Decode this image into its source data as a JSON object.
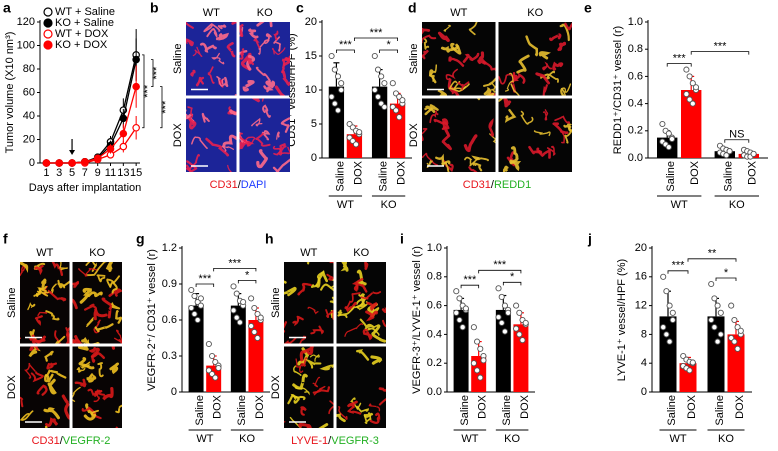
{
  "chart_data": [
    {
      "panel": "a",
      "type": "line",
      "ylabel": "Tumor volume (X10 nm³)",
      "xlabel": "Days after implantation",
      "x": [
        1,
        3,
        5,
        7,
        9,
        11,
        13,
        15
      ],
      "xlim": [
        0,
        15.6
      ],
      "xticks": [
        1,
        3,
        5,
        7,
        9,
        11,
        13,
        15
      ],
      "ylim": [
        0,
        120
      ],
      "yticks": [
        0,
        20,
        40,
        60,
        80,
        100,
        120
      ],
      "arrow": 5,
      "series": [
        {
          "name": "WT + Saline",
          "color": "#000000",
          "marker": "open",
          "values": [
            0,
            0,
            0,
            1,
            5,
            18,
            45,
            92
          ],
          "errors": [
            0,
            0,
            0,
            1,
            2,
            5,
            10,
            22
          ]
        },
        {
          "name": "KO + Saline",
          "color": "#000000",
          "marker": "filled",
          "values": [
            0,
            0,
            0,
            1,
            4,
            15,
            38,
            88
          ],
          "errors": [
            0,
            0,
            0,
            1,
            2,
            4,
            8,
            18
          ]
        },
        {
          "name": "WT + DOX",
          "color": "#ff0000",
          "marker": "open",
          "values": [
            0,
            0,
            0,
            0,
            3,
            7,
            14,
            30
          ],
          "errors": [
            0,
            0,
            0,
            0.5,
            1,
            3,
            5,
            10
          ]
        },
        {
          "name": "KO + DOX",
          "color": "#ff0000",
          "marker": "filled",
          "values": [
            0,
            0,
            0,
            1,
            4,
            12,
            25,
            65
          ],
          "errors": [
            0,
            0,
            0,
            0.5,
            2,
            4,
            8,
            18
          ]
        }
      ],
      "annotations": [
        "***",
        "***",
        "***"
      ]
    },
    {
      "panel": "c",
      "type": "bar",
      "ylabel": "CD31⁺ vessel/HPF (%)",
      "categories": [
        "Saline",
        "DOX",
        "Saline",
        "DOX"
      ],
      "groups": [
        "WT",
        "KO"
      ],
      "colors": [
        "#000000",
        "#ff0000",
        "#000000",
        "#ff0000"
      ],
      "values": [
        10.5,
        3.5,
        10.5,
        8
      ],
      "errors": [
        3.5,
        1.2,
        2.5,
        1.5
      ],
      "points": [
        [
          15,
          13,
          12,
          10,
          9,
          8,
          7,
          11
        ],
        [
          5,
          4.5,
          4,
          3.5,
          3,
          2.5,
          2,
          3.8
        ],
        [
          15,
          13,
          12,
          11,
          10,
          9,
          8,
          7.5
        ],
        [
          11,
          9.5,
          9,
          8,
          7.5,
          7,
          6,
          8.5
        ]
      ],
      "ylim": [
        0,
        20
      ],
      "yticks": [
        0,
        5,
        10,
        15,
        20
      ],
      "annotations": [
        "***",
        "*",
        "***"
      ]
    },
    {
      "panel": "e",
      "type": "bar",
      "ylabel": "REDD1⁺/CD31⁺ vessel (r)",
      "categories": [
        "Saline",
        "DOX",
        "Saline",
        "DOX"
      ],
      "groups": [
        "WT",
        "KO"
      ],
      "colors": [
        "#000000",
        "#ff0000",
        "#000000",
        "#ff0000"
      ],
      "values": [
        0.15,
        0.5,
        0.05,
        0.03
      ],
      "errors": [
        0.05,
        0.1,
        0.02,
        0.02
      ],
      "points": [
        [
          0.25,
          0.2,
          0.18,
          0.15,
          0.12,
          0.1,
          0.08,
          0.14
        ],
        [
          0.65,
          0.6,
          0.55,
          0.5,
          0.47,
          0.43,
          0.4,
          0.52
        ],
        [
          0.09,
          0.07,
          0.06,
          0.05,
          0.04,
          0.03,
          0.02,
          0.05
        ],
        [
          0.06,
          0.05,
          0.04,
          0.03,
          0.02,
          0.01,
          0.01,
          0.03
        ]
      ],
      "ylim": [
        0,
        1
      ],
      "yticks": [
        {
          "value": 0,
          "label": "0.0"
        },
        0.2,
        0.4,
        0.6,
        0.8,
        {
          "value": 1,
          "label": "1.0"
        }
      ],
      "annotations": [
        "***",
        "NS",
        "***"
      ]
    },
    {
      "panel": "g",
      "type": "bar",
      "ylabel": "VEGFR-2⁺/ CD31⁺ vessel (r)",
      "categories": [
        "Saline",
        "DOX",
        "Saline",
        "DOX"
      ],
      "groups": [
        "WT",
        "KO"
      ],
      "colors": [
        "#000000",
        "#ff0000",
        "#000000",
        "#ff0000"
      ],
      "values": [
        0.72,
        0.22,
        0.72,
        0.6
      ],
      "errors": [
        0.1,
        0.08,
        0.1,
        0.1
      ],
      "points": [
        [
          0.85,
          0.8,
          0.75,
          0.72,
          0.7,
          0.65,
          0.6,
          0.78
        ],
        [
          0.4,
          0.3,
          0.25,
          0.22,
          0.18,
          0.15,
          0.12,
          0.2
        ],
        [
          0.88,
          0.82,
          0.76,
          0.72,
          0.68,
          0.62,
          0.58,
          0.75
        ],
        [
          0.78,
          0.7,
          0.65,
          0.6,
          0.55,
          0.5,
          0.45,
          0.62
        ]
      ],
      "ylim": [
        0,
        1.2
      ],
      "yticks": [
        0,
        0.3,
        0.6,
        0.9,
        1.2
      ],
      "annotations": [
        "***",
        "*",
        "***"
      ]
    },
    {
      "panel": "i",
      "type": "bar",
      "ylabel": "VEGFR-3⁺/LYVE-1⁺ vessel (r)",
      "categories": [
        "Saline",
        "DOX",
        "Saline",
        "DOX"
      ],
      "groups": [
        "WT",
        "KO"
      ],
      "colors": [
        "#000000",
        "#ff0000",
        "#000000",
        "#ff0000"
      ],
      "values": [
        0.57,
        0.25,
        0.57,
        0.47
      ],
      "errors": [
        0.08,
        0.1,
        0.1,
        0.08
      ],
      "points": [
        [
          0.7,
          0.65,
          0.6,
          0.57,
          0.55,
          0.5,
          0.45,
          0.58
        ],
        [
          0.45,
          0.35,
          0.3,
          0.25,
          0.2,
          0.15,
          0.1,
          0.22
        ],
        [
          0.72,
          0.66,
          0.6,
          0.57,
          0.52,
          0.48,
          0.42,
          0.55
        ],
        [
          0.6,
          0.55,
          0.5,
          0.47,
          0.44,
          0.4,
          0.36,
          0.48
        ]
      ],
      "ylim": [
        0,
        1
      ],
      "yticks": [
        {
          "value": 0,
          "label": "0.0"
        },
        0.2,
        0.4,
        0.6,
        0.8,
        {
          "value": 1,
          "label": "1.0"
        }
      ],
      "annotations": [
        "***",
        "*",
        "***"
      ]
    },
    {
      "panel": "j",
      "type": "bar",
      "ylabel": "LYVE-1⁺ vessel/HPF (%)",
      "categories": [
        "Saline",
        "DOX",
        "Saline",
        "DOX"
      ],
      "groups": [
        "WT",
        "KO"
      ],
      "colors": [
        "#000000",
        "#ff0000",
        "#000000",
        "#ff0000"
      ],
      "values": [
        10.5,
        4,
        10.5,
        8
      ],
      "errors": [
        3.5,
        0.8,
        2.5,
        1.8
      ],
      "points": [
        [
          16,
          14,
          12,
          10,
          9,
          8,
          7,
          11
        ],
        [
          5,
          4.5,
          4.2,
          4,
          3.6,
          3.3,
          3,
          4.1
        ],
        [
          15,
          13,
          12,
          11,
          10,
          9,
          7,
          8
        ],
        [
          12,
          10,
          9,
          8,
          7.5,
          7,
          6,
          8.5
        ]
      ],
      "ylim": [
        0,
        20
      ],
      "yticks": [
        0,
        4,
        8,
        12,
        16,
        20
      ],
      "annotations": [
        "***",
        "*",
        "**"
      ]
    }
  ],
  "image_panels": [
    {
      "panel": "b",
      "columns": [
        "WT",
        "KO"
      ],
      "rows": [
        "Saline",
        "DOX"
      ],
      "caption": [
        "CD31",
        "/",
        "DAPI"
      ],
      "caption_colors": [
        "#e8141b",
        "#000000",
        "#1f3cff"
      ],
      "background": "#1c2498",
      "stain": [
        "#e8204f",
        "#ff6a8a"
      ]
    },
    {
      "panel": "d",
      "columns": [
        "WT",
        "KO"
      ],
      "rows": [
        "Saline",
        "DOX"
      ],
      "caption": [
        "CD31",
        "/",
        "REDD1"
      ],
      "caption_colors": [
        "#e8141b",
        "#000000",
        "#22b022"
      ],
      "background": "#050505",
      "stain": [
        "#d8182a",
        "#e8c030"
      ]
    },
    {
      "panel": "f",
      "columns": [
        "WT",
        "KO"
      ],
      "rows": [
        "Saline",
        "DOX"
      ],
      "caption": [
        "CD31",
        "/",
        "VEGFR-2"
      ],
      "caption_colors": [
        "#e8141b",
        "#000000",
        "#22b022"
      ],
      "background": "#080404",
      "stain": [
        "#f0c020",
        "#d81818"
      ]
    },
    {
      "panel": "h",
      "columns": [
        "WT",
        "KO"
      ],
      "rows": [
        "Saline",
        "DOX"
      ],
      "caption": [
        "LYVE-1",
        "/",
        "VEGFR-3"
      ],
      "caption_colors": [
        "#e8141b",
        "#000000",
        "#22b022"
      ],
      "background": "#050505",
      "stain": [
        "#e8d020",
        "#d81818"
      ]
    }
  ]
}
